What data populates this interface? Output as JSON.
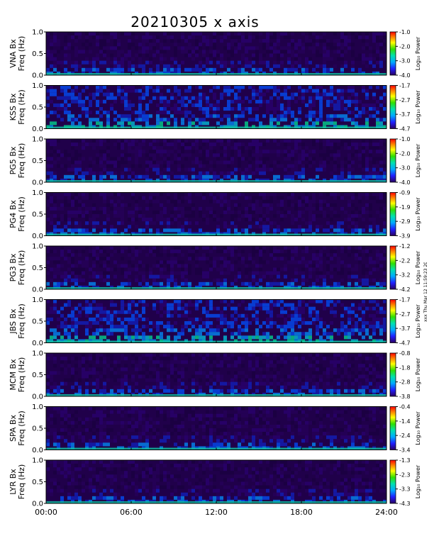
{
  "chart_data": {
    "type": "heatmap",
    "title": "20210305  x axis",
    "x_ticks": [
      "00:00",
      "06:00",
      "12:00",
      "18:00",
      "24:00"
    ],
    "x_range_hours": [
      0,
      24
    ],
    "y_ticks": [
      "0.0",
      "0.5",
      "1.0"
    ],
    "y_range_hz": [
      0,
      1.0
    ],
    "colorbar_label": "Log₁₀ Power",
    "side_note": "xxx Thu Mar 12 11:59:23 2021 xxx",
    "panels": [
      {
        "station_label": "VNA Bx",
        "ylabel": "Freq (Hz)",
        "cbar_ticks": [
          "-1.0",
          "-2.0",
          "-3.0",
          "-4.0"
        ],
        "cbar_range": [
          -4.0,
          -1.0
        ]
      },
      {
        "station_label": "KSS Bx",
        "ylabel": "Freq (Hz)",
        "cbar_ticks": [
          "-1.7",
          "-2.7",
          "-3.7",
          "-4.7"
        ],
        "cbar_range": [
          -4.7,
          -1.7
        ]
      },
      {
        "station_label": "PG5 Bx",
        "ylabel": "Freq (Hz)",
        "cbar_ticks": [
          "-1.0",
          "-2.0",
          "-3.0",
          "-4.0"
        ],
        "cbar_range": [
          -4.0,
          -1.0
        ]
      },
      {
        "station_label": "PG4 Bx",
        "ylabel": "Freq (Hz)",
        "cbar_ticks": [
          "-0.9",
          "-1.9",
          "-2.9",
          "-3.9"
        ],
        "cbar_range": [
          -3.9,
          -0.9
        ]
      },
      {
        "station_label": "PG3 Bx",
        "ylabel": "Freq (Hz)",
        "cbar_ticks": [
          "-1.2",
          "-2.2",
          "-3.2",
          "-4.2"
        ],
        "cbar_range": [
          -4.2,
          -1.2
        ]
      },
      {
        "station_label": "JBS Bx",
        "ylabel": "Freq (Hz)",
        "cbar_ticks": [
          "-1.7",
          "-2.7",
          "-3.7",
          "-4.7"
        ],
        "cbar_range": [
          -4.7,
          -1.7
        ]
      },
      {
        "station_label": "MCM Bx",
        "ylabel": "Freq (Hz)",
        "cbar_ticks": [
          "-0.8",
          "-1.8",
          "-2.8",
          "-3.8"
        ],
        "cbar_range": [
          -3.8,
          -0.8
        ]
      },
      {
        "station_label": "SPA Bx",
        "ylabel": "Freq (Hz)",
        "cbar_ticks": [
          "-0.4",
          "-1.4",
          "-2.4",
          "-3.4"
        ],
        "cbar_range": [
          -3.4,
          -0.4
        ]
      },
      {
        "station_label": "LYR Bx",
        "ylabel": "Freq (Hz)",
        "cbar_ticks": [
          "-1.3",
          "-2.3",
          "-3.3",
          "-4.3"
        ],
        "cbar_range": [
          -4.3,
          -1.3
        ]
      }
    ]
  }
}
